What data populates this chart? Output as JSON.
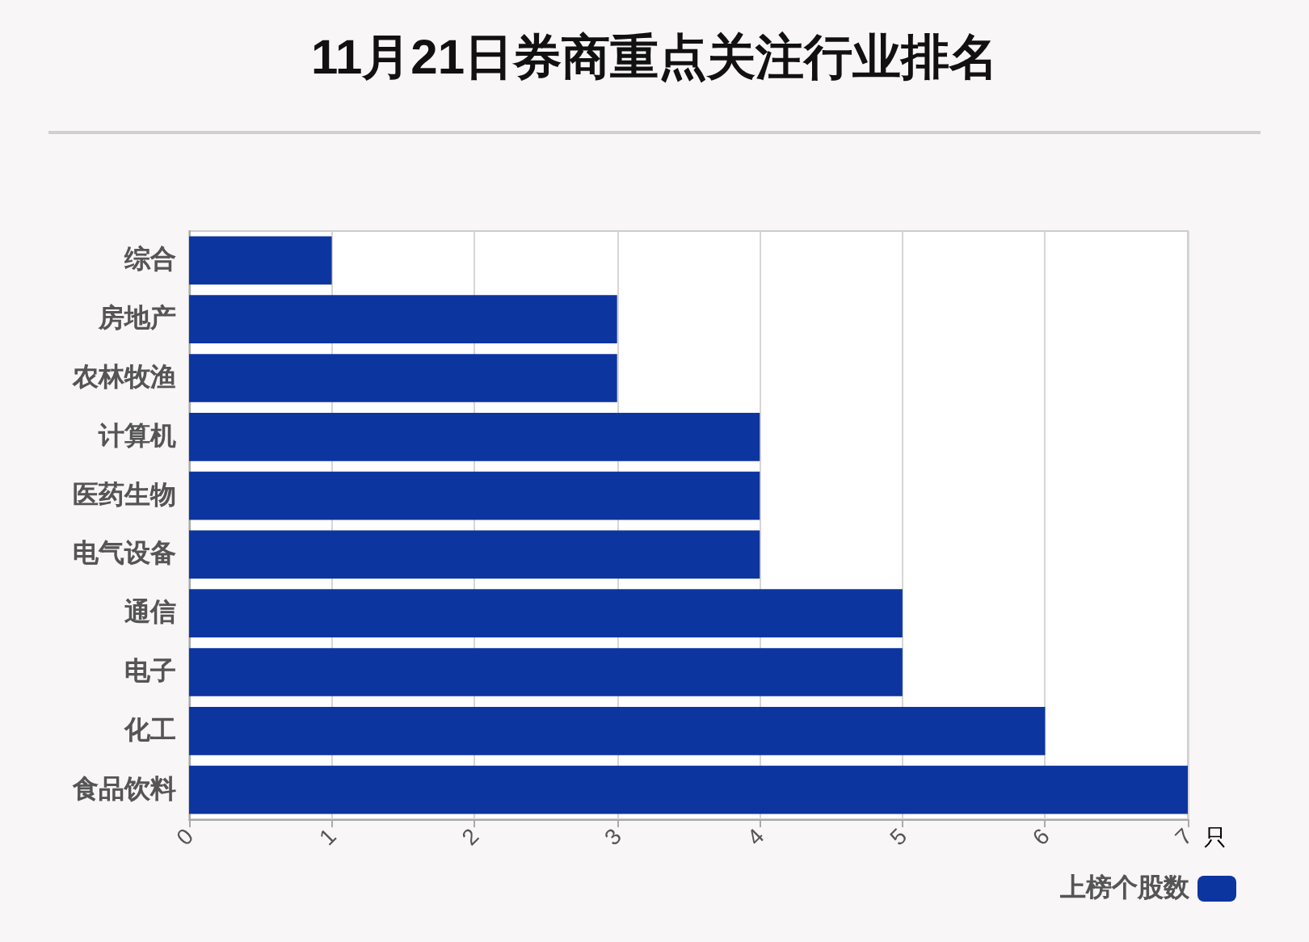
{
  "chart_data": {
    "type": "bar",
    "orientation": "horizontal",
    "title": "11月21日券商重点关注行业排名",
    "xlabel": "只",
    "categories": [
      "综合",
      "房地产",
      "农林牧渔",
      "计算机",
      "医药生物",
      "电气设备",
      "通信",
      "电子",
      "化工",
      "食品饮料"
    ],
    "series": [
      {
        "name": "上榜个股数",
        "color": "#0d35a0",
        "values": [
          1,
          3,
          3,
          4,
          4,
          4,
          5,
          5,
          6,
          7
        ]
      }
    ],
    "xlim": [
      0,
      7
    ],
    "xticks": [
      0,
      1,
      2,
      3,
      4,
      5,
      6,
      7
    ],
    "grid": "x",
    "legend": "bottom right"
  }
}
